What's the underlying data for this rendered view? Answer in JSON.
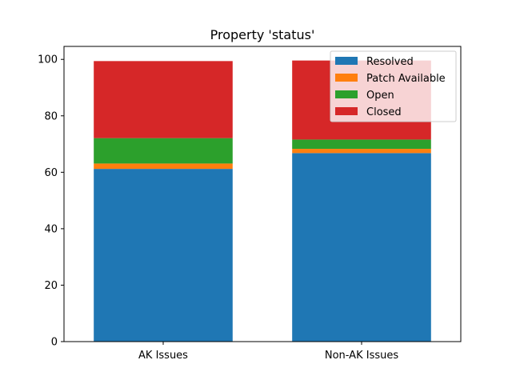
{
  "chart_data": {
    "type": "bar",
    "stacked": true,
    "title": "Property 'status'",
    "xlabel": "",
    "ylabel": "",
    "categories": [
      "AK Issues",
      "Non-AK Issues"
    ],
    "series": [
      {
        "name": "Resolved",
        "color": "#1f77b4",
        "values": [
          61.2,
          66.8
        ]
      },
      {
        "name": "Patch Available",
        "color": "#ff7f0e",
        "values": [
          1.9,
          1.5
        ]
      },
      {
        "name": "Open",
        "color": "#2ca02c",
        "values": [
          9.0,
          3.3
        ]
      },
      {
        "name": "Closed",
        "color": "#d62728",
        "values": [
          27.3,
          28.0
        ]
      }
    ],
    "ylim": [
      0,
      104.6
    ],
    "yticks": [
      0,
      20,
      40,
      60,
      80,
      100
    ],
    "grid": false,
    "legend_position": "top-right"
  }
}
